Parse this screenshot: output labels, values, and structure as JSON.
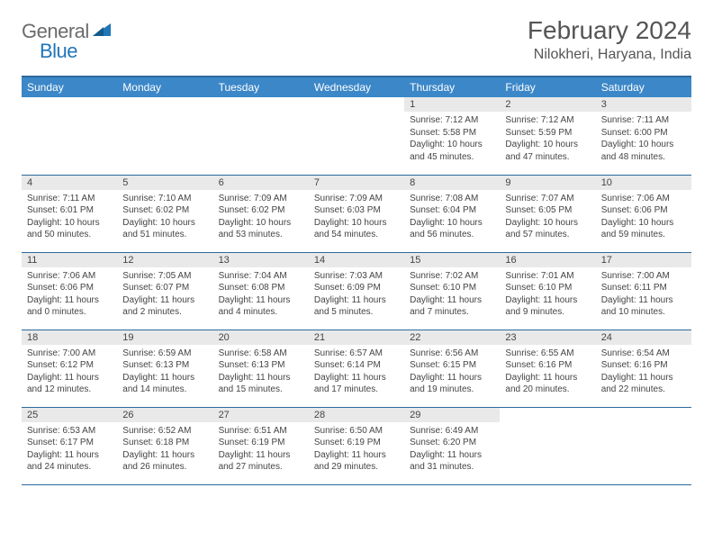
{
  "brand": {
    "part1": "General",
    "part2": "Blue"
  },
  "title": "February 2024",
  "location": "Nilokheri, Haryana, India",
  "colors": {
    "header_bg": "#3b87c8",
    "header_border": "#2d6a9e",
    "daynum_bg": "#e9e9e9",
    "text": "#444444",
    "brand_gray": "#6b6b6b",
    "brand_blue": "#2176b8"
  },
  "weekdays": [
    "Sunday",
    "Monday",
    "Tuesday",
    "Wednesday",
    "Thursday",
    "Friday",
    "Saturday"
  ],
  "weeks": [
    [
      {
        "empty": true
      },
      {
        "empty": true
      },
      {
        "empty": true
      },
      {
        "empty": true
      },
      {
        "n": "1",
        "sr": "Sunrise: 7:12 AM",
        "ss": "Sunset: 5:58 PM",
        "d1": "Daylight: 10 hours",
        "d2": "and 45 minutes."
      },
      {
        "n": "2",
        "sr": "Sunrise: 7:12 AM",
        "ss": "Sunset: 5:59 PM",
        "d1": "Daylight: 10 hours",
        "d2": "and 47 minutes."
      },
      {
        "n": "3",
        "sr": "Sunrise: 7:11 AM",
        "ss": "Sunset: 6:00 PM",
        "d1": "Daylight: 10 hours",
        "d2": "and 48 minutes."
      }
    ],
    [
      {
        "n": "4",
        "sr": "Sunrise: 7:11 AM",
        "ss": "Sunset: 6:01 PM",
        "d1": "Daylight: 10 hours",
        "d2": "and 50 minutes."
      },
      {
        "n": "5",
        "sr": "Sunrise: 7:10 AM",
        "ss": "Sunset: 6:02 PM",
        "d1": "Daylight: 10 hours",
        "d2": "and 51 minutes."
      },
      {
        "n": "6",
        "sr": "Sunrise: 7:09 AM",
        "ss": "Sunset: 6:02 PM",
        "d1": "Daylight: 10 hours",
        "d2": "and 53 minutes."
      },
      {
        "n": "7",
        "sr": "Sunrise: 7:09 AM",
        "ss": "Sunset: 6:03 PM",
        "d1": "Daylight: 10 hours",
        "d2": "and 54 minutes."
      },
      {
        "n": "8",
        "sr": "Sunrise: 7:08 AM",
        "ss": "Sunset: 6:04 PM",
        "d1": "Daylight: 10 hours",
        "d2": "and 56 minutes."
      },
      {
        "n": "9",
        "sr": "Sunrise: 7:07 AM",
        "ss": "Sunset: 6:05 PM",
        "d1": "Daylight: 10 hours",
        "d2": "and 57 minutes."
      },
      {
        "n": "10",
        "sr": "Sunrise: 7:06 AM",
        "ss": "Sunset: 6:06 PM",
        "d1": "Daylight: 10 hours",
        "d2": "and 59 minutes."
      }
    ],
    [
      {
        "n": "11",
        "sr": "Sunrise: 7:06 AM",
        "ss": "Sunset: 6:06 PM",
        "d1": "Daylight: 11 hours",
        "d2": "and 0 minutes."
      },
      {
        "n": "12",
        "sr": "Sunrise: 7:05 AM",
        "ss": "Sunset: 6:07 PM",
        "d1": "Daylight: 11 hours",
        "d2": "and 2 minutes."
      },
      {
        "n": "13",
        "sr": "Sunrise: 7:04 AM",
        "ss": "Sunset: 6:08 PM",
        "d1": "Daylight: 11 hours",
        "d2": "and 4 minutes."
      },
      {
        "n": "14",
        "sr": "Sunrise: 7:03 AM",
        "ss": "Sunset: 6:09 PM",
        "d1": "Daylight: 11 hours",
        "d2": "and 5 minutes."
      },
      {
        "n": "15",
        "sr": "Sunrise: 7:02 AM",
        "ss": "Sunset: 6:10 PM",
        "d1": "Daylight: 11 hours",
        "d2": "and 7 minutes."
      },
      {
        "n": "16",
        "sr": "Sunrise: 7:01 AM",
        "ss": "Sunset: 6:10 PM",
        "d1": "Daylight: 11 hours",
        "d2": "and 9 minutes."
      },
      {
        "n": "17",
        "sr": "Sunrise: 7:00 AM",
        "ss": "Sunset: 6:11 PM",
        "d1": "Daylight: 11 hours",
        "d2": "and 10 minutes."
      }
    ],
    [
      {
        "n": "18",
        "sr": "Sunrise: 7:00 AM",
        "ss": "Sunset: 6:12 PM",
        "d1": "Daylight: 11 hours",
        "d2": "and 12 minutes."
      },
      {
        "n": "19",
        "sr": "Sunrise: 6:59 AM",
        "ss": "Sunset: 6:13 PM",
        "d1": "Daylight: 11 hours",
        "d2": "and 14 minutes."
      },
      {
        "n": "20",
        "sr": "Sunrise: 6:58 AM",
        "ss": "Sunset: 6:13 PM",
        "d1": "Daylight: 11 hours",
        "d2": "and 15 minutes."
      },
      {
        "n": "21",
        "sr": "Sunrise: 6:57 AM",
        "ss": "Sunset: 6:14 PM",
        "d1": "Daylight: 11 hours",
        "d2": "and 17 minutes."
      },
      {
        "n": "22",
        "sr": "Sunrise: 6:56 AM",
        "ss": "Sunset: 6:15 PM",
        "d1": "Daylight: 11 hours",
        "d2": "and 19 minutes."
      },
      {
        "n": "23",
        "sr": "Sunrise: 6:55 AM",
        "ss": "Sunset: 6:16 PM",
        "d1": "Daylight: 11 hours",
        "d2": "and 20 minutes."
      },
      {
        "n": "24",
        "sr": "Sunrise: 6:54 AM",
        "ss": "Sunset: 6:16 PM",
        "d1": "Daylight: 11 hours",
        "d2": "and 22 minutes."
      }
    ],
    [
      {
        "n": "25",
        "sr": "Sunrise: 6:53 AM",
        "ss": "Sunset: 6:17 PM",
        "d1": "Daylight: 11 hours",
        "d2": "and 24 minutes."
      },
      {
        "n": "26",
        "sr": "Sunrise: 6:52 AM",
        "ss": "Sunset: 6:18 PM",
        "d1": "Daylight: 11 hours",
        "d2": "and 26 minutes."
      },
      {
        "n": "27",
        "sr": "Sunrise: 6:51 AM",
        "ss": "Sunset: 6:19 PM",
        "d1": "Daylight: 11 hours",
        "d2": "and 27 minutes."
      },
      {
        "n": "28",
        "sr": "Sunrise: 6:50 AM",
        "ss": "Sunset: 6:19 PM",
        "d1": "Daylight: 11 hours",
        "d2": "and 29 minutes."
      },
      {
        "n": "29",
        "sr": "Sunrise: 6:49 AM",
        "ss": "Sunset: 6:20 PM",
        "d1": "Daylight: 11 hours",
        "d2": "and 31 minutes."
      },
      {
        "empty": true
      },
      {
        "empty": true
      }
    ]
  ]
}
